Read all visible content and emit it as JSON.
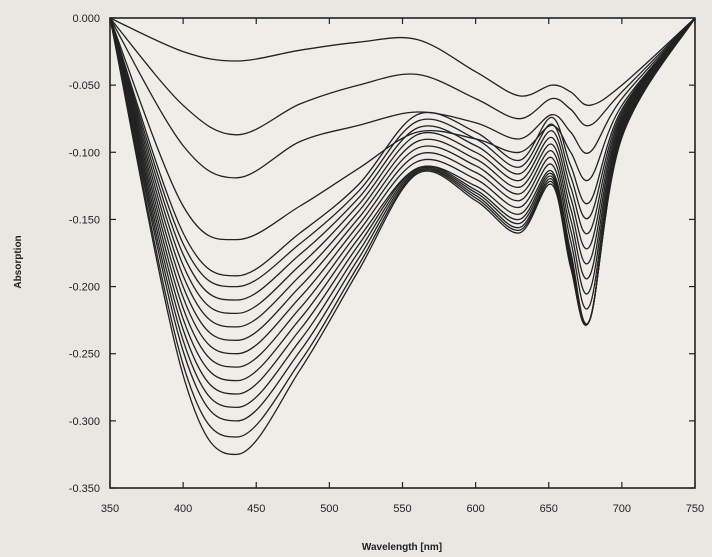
{
  "chart_data": {
    "type": "line",
    "title": "",
    "xlabel": "Wavelength [nm]",
    "ylabel": "Absorption",
    "xlim": [
      350,
      750
    ],
    "ylim": [
      -0.35,
      0.0
    ],
    "x_ticks": [
      350,
      400,
      450,
      500,
      550,
      600,
      650,
      700,
      750
    ],
    "x_tick_labels": [
      "350",
      "400",
      "450",
      "500",
      "550",
      "600",
      "650",
      "700",
      "750"
    ],
    "y_ticks": [
      0.0,
      -0.05,
      -0.1,
      -0.15,
      -0.2,
      -0.25,
      -0.3,
      -0.35
    ],
    "y_tick_labels": [
      "0.000",
      "-0.050",
      "-0.100",
      "-0.150",
      "-0.200",
      "-0.250",
      "-0.300",
      "-0.350"
    ],
    "grid": false,
    "legend": "none",
    "line_color": "#222222",
    "x": [
      350,
      400,
      437,
      480,
      520,
      560,
      600,
      630,
      652,
      665,
      678,
      700,
      750
    ],
    "series": [
      {
        "values": [
          0,
          -0.025,
          -0.032,
          -0.024,
          -0.018,
          -0.016,
          -0.04,
          -0.058,
          -0.05,
          -0.055,
          -0.065,
          -0.05,
          0
        ]
      },
      {
        "values": [
          0,
          -0.065,
          -0.087,
          -0.064,
          -0.05,
          -0.042,
          -0.06,
          -0.075,
          -0.06,
          -0.068,
          -0.08,
          -0.055,
          0
        ]
      },
      {
        "values": [
          0,
          -0.095,
          -0.119,
          -0.092,
          -0.08,
          -0.07,
          -0.078,
          -0.09,
          -0.072,
          -0.085,
          -0.1,
          -0.06,
          0
        ]
      },
      {
        "values": [
          0,
          -0.14,
          -0.165,
          -0.14,
          -0.112,
          -0.085,
          -0.09,
          -0.1,
          -0.08,
          -0.1,
          -0.12,
          -0.065,
          0
        ]
      },
      {
        "values": [
          0,
          -0.16,
          -0.192,
          -0.16,
          -0.124,
          -0.072,
          -0.085,
          -0.106,
          -0.074,
          -0.11,
          -0.137,
          -0.068,
          0
        ]
      },
      {
        "values": [
          0,
          -0.168,
          -0.2,
          -0.168,
          -0.129,
          -0.077,
          -0.09,
          -0.111,
          -0.079,
          -0.118,
          -0.148,
          -0.07,
          0
        ]
      },
      {
        "values": [
          0,
          -0.176,
          -0.21,
          -0.176,
          -0.134,
          -0.082,
          -0.095,
          -0.116,
          -0.084,
          -0.126,
          -0.159,
          -0.072,
          0
        ]
      },
      {
        "values": [
          0,
          -0.184,
          -0.22,
          -0.184,
          -0.139,
          -0.087,
          -0.1,
          -0.121,
          -0.089,
          -0.134,
          -0.17,
          -0.074,
          0
        ]
      },
      {
        "values": [
          0,
          -0.192,
          -0.23,
          -0.192,
          -0.144,
          -0.092,
          -0.105,
          -0.126,
          -0.094,
          -0.142,
          -0.181,
          -0.076,
          0
        ]
      },
      {
        "values": [
          0,
          -0.2,
          -0.24,
          -0.2,
          -0.149,
          -0.097,
          -0.11,
          -0.131,
          -0.099,
          -0.15,
          -0.192,
          -0.078,
          0
        ]
      },
      {
        "values": [
          0,
          -0.208,
          -0.25,
          -0.208,
          -0.154,
          -0.102,
          -0.115,
          -0.136,
          -0.104,
          -0.158,
          -0.203,
          -0.08,
          0
        ]
      },
      {
        "values": [
          0,
          -0.216,
          -0.26,
          -0.216,
          -0.159,
          -0.107,
          -0.12,
          -0.141,
          -0.109,
          -0.166,
          -0.214,
          -0.082,
          0
        ]
      },
      {
        "values": [
          0,
          -0.224,
          -0.27,
          -0.224,
          -0.164,
          -0.112,
          -0.125,
          -0.146,
          -0.114,
          -0.174,
          -0.225,
          -0.084,
          0
        ]
      },
      {
        "values": [
          0,
          -0.232,
          -0.28,
          -0.232,
          -0.169,
          -0.112,
          -0.128,
          -0.15,
          -0.116,
          -0.178,
          -0.225,
          -0.085,
          0
        ]
      },
      {
        "values": [
          0,
          -0.24,
          -0.29,
          -0.24,
          -0.174,
          -0.113,
          -0.13,
          -0.153,
          -0.118,
          -0.18,
          -0.225,
          -0.086,
          0
        ]
      },
      {
        "values": [
          0,
          -0.248,
          -0.3,
          -0.248,
          -0.179,
          -0.114,
          -0.132,
          -0.156,
          -0.12,
          -0.182,
          -0.225,
          -0.087,
          0
        ]
      },
      {
        "values": [
          0,
          -0.258,
          -0.312,
          -0.256,
          -0.184,
          -0.115,
          -0.134,
          -0.158,
          -0.122,
          -0.184,
          -0.225,
          -0.088,
          0
        ]
      },
      {
        "values": [
          0,
          -0.266,
          -0.325,
          -0.262,
          -0.188,
          -0.116,
          -0.136,
          -0.16,
          -0.124,
          -0.186,
          -0.225,
          -0.089,
          0
        ]
      }
    ]
  }
}
